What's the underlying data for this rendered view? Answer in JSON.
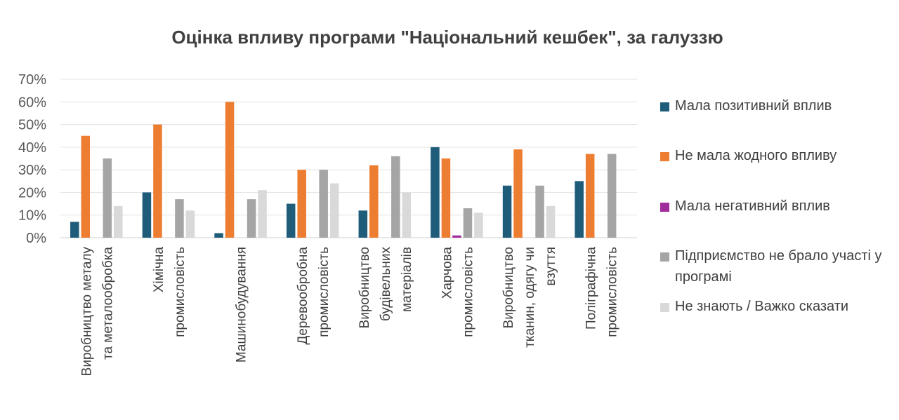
{
  "chart_data": {
    "type": "bar",
    "title": "Оцінка впливу програми \"Національний кешбек\", за галуззю",
    "xlabel": "",
    "ylabel": "",
    "ylim": [
      0,
      70
    ],
    "yticks": [
      "0%",
      "10%",
      "20%",
      "30%",
      "40%",
      "50%",
      "60%",
      "70%"
    ],
    "grid": true,
    "legend_position": "right",
    "categories": [
      [
        "Виробництво металу",
        "та металообробка"
      ],
      [
        "Хімічна",
        "промисловість"
      ],
      [
        "Машинобудування"
      ],
      [
        "Деревообробна",
        "промисловість"
      ],
      [
        "Виробництво",
        "будівельних",
        "матеріалів"
      ],
      [
        "Харчова",
        "промисловість"
      ],
      [
        "Виробництво",
        "тканин, одягу чи",
        "взуття"
      ],
      [
        "Поліграфічна",
        "промисловість"
      ]
    ],
    "series": [
      {
        "name": "Мала позитивний вплив",
        "color": "#1F5C7A",
        "values": [
          7,
          20,
          2,
          15,
          12,
          40,
          23,
          25
        ]
      },
      {
        "name": "Не мала жодного впливу",
        "color": "#ED7D31",
        "values": [
          45,
          50,
          60,
          30,
          32,
          35,
          39,
          37
        ]
      },
      {
        "name": "Мала негативний вплив",
        "color": "#A12C9C",
        "values": [
          0,
          0,
          0,
          0,
          0,
          1,
          0,
          0
        ]
      },
      {
        "name": "Підприємство не брало участі у програмі",
        "color": "#A5A5A5",
        "values": [
          35,
          17,
          17,
          30,
          36,
          13,
          23,
          37
        ]
      },
      {
        "name": "Не знають / Важко сказати",
        "color": "#D9D9D9",
        "values": [
          14,
          12,
          21,
          24,
          20,
          11,
          14,
          0
        ]
      }
    ]
  }
}
